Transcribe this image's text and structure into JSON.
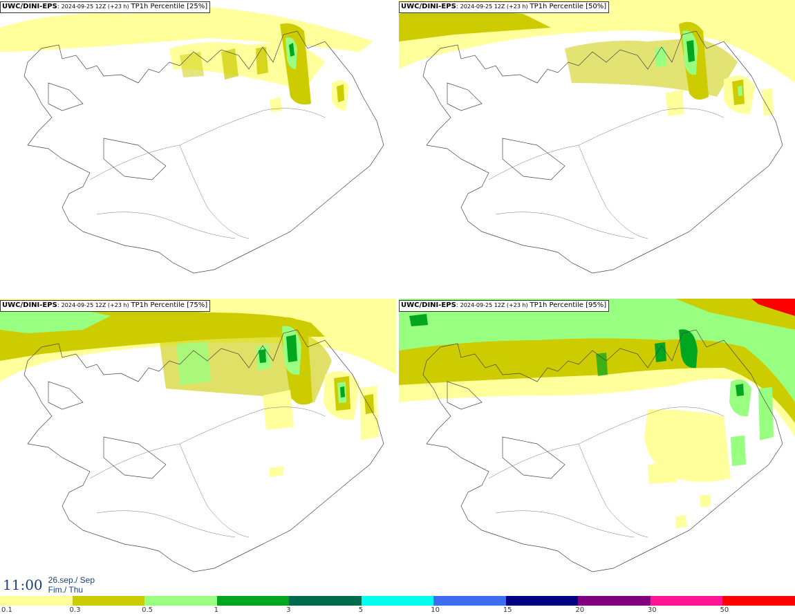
{
  "panels": [
    {
      "model": "UWC/DINI-EPS",
      "run": "2024-09-25 12Z (+23 h)",
      "param": "TP1h Percentile [25%]"
    },
    {
      "model": "UWC/DINI-EPS",
      "run": "2024-09-25 12Z (+23 h)",
      "param": "TP1h Percentile [50%]"
    },
    {
      "model": "UWC/DINI-EPS",
      "run": "2024-09-25 12Z (+23 h)",
      "param": "TP1h Percentile [75%]"
    },
    {
      "model": "UWC/DINI-EPS",
      "run": "2024-09-25 12Z (+23 h)",
      "param": "TP1h Percentile [95%]"
    }
  ],
  "valid_time": {
    "time": "11:00",
    "date_line": "26.sep./ Sep",
    "day_line": "Fim./ Thu"
  },
  "legend": {
    "bins": [
      {
        "label": "0.1",
        "color": "#ffff9c"
      },
      {
        "label": "0.3",
        "color": "#cccc00"
      },
      {
        "label": "0.5",
        "color": "#99ff80"
      },
      {
        "label": "1",
        "color": "#00a520"
      },
      {
        "label": "3",
        "color": "#006b4c"
      },
      {
        "label": "5",
        "color": "#00ffee"
      },
      {
        "label": "10",
        "color": "#3d6ef2"
      },
      {
        "label": "15",
        "color": "#000080"
      },
      {
        "label": "20",
        "color": "#800080"
      },
      {
        "label": "30",
        "color": "#ff1493"
      },
      {
        "label": "50",
        "color": "#ff0000"
      }
    ]
  }
}
